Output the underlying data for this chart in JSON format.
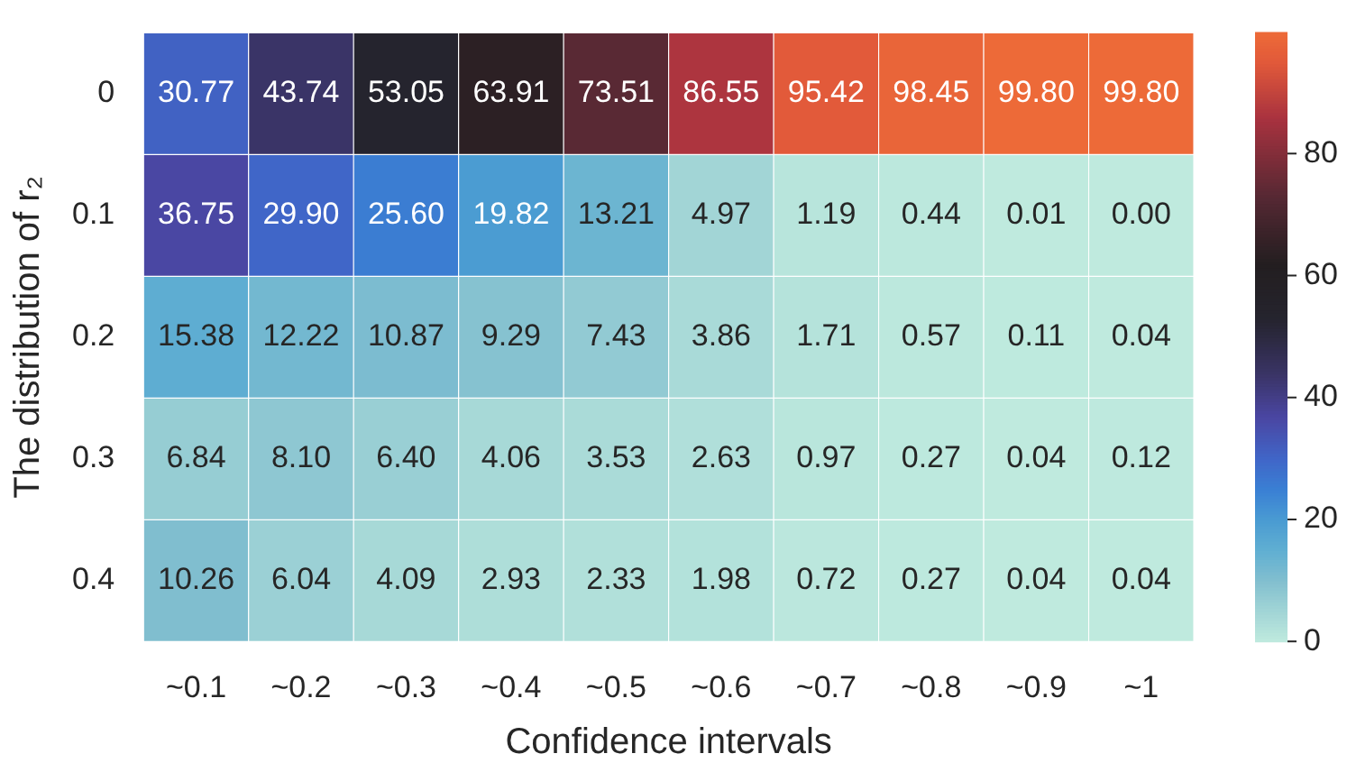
{
  "chart_data": {
    "type": "heatmap",
    "xlabel": "Confidence intervals",
    "ylabel": "The distribution of r₂",
    "categories": [
      "~0.1",
      "~0.2",
      "~0.3",
      "~0.4",
      "~0.5",
      "~0.6",
      "~0.7",
      "~0.8",
      "~0.9",
      "~1"
    ],
    "y_categories": [
      "0",
      "0.1",
      "0.2",
      "0.3",
      "0.4"
    ],
    "cells": [
      [
        30.77,
        43.74,
        53.05,
        63.91,
        73.51,
        86.55,
        95.42,
        98.45,
        99.8,
        99.8
      ],
      [
        36.75,
        29.9,
        25.6,
        19.82,
        13.21,
        4.97,
        1.19,
        0.44,
        0.01,
        0.0
      ],
      [
        15.38,
        12.22,
        10.87,
        9.29,
        7.43,
        3.86,
        1.71,
        0.57,
        0.11,
        0.04
      ],
      [
        6.84,
        8.1,
        6.4,
        4.06,
        3.53,
        2.63,
        0.97,
        0.27,
        0.04,
        0.12
      ],
      [
        10.26,
        6.04,
        4.09,
        2.93,
        2.33,
        1.98,
        0.72,
        0.27,
        0.04,
        0.04
      ]
    ],
    "cell_labels": [
      [
        "30.77",
        "43.74",
        "53.05",
        "63.91",
        "73.51",
        "86.55",
        "95.42",
        "98.45",
        "99.80",
        "99.80"
      ],
      [
        "36.75",
        "29.90",
        "25.60",
        "19.82",
        "13.21",
        "4.97",
        "1.19",
        "0.44",
        "0.01",
        "0.00"
      ],
      [
        "15.38",
        "12.22",
        "10.87",
        "9.29",
        "7.43",
        "3.86",
        "1.71",
        "0.57",
        "0.11",
        "0.04"
      ],
      [
        "6.84",
        "8.10",
        "6.40",
        "4.06",
        "3.53",
        "2.63",
        "0.97",
        "0.27",
        "0.04",
        "0.12"
      ],
      [
        "10.26",
        "6.04",
        "4.09",
        "2.93",
        "2.33",
        "1.98",
        "0.72",
        "0.27",
        "0.04",
        "0.04"
      ]
    ],
    "clim": [
      0,
      99.8
    ],
    "cticks": [
      0,
      20,
      40,
      60,
      80
    ]
  }
}
